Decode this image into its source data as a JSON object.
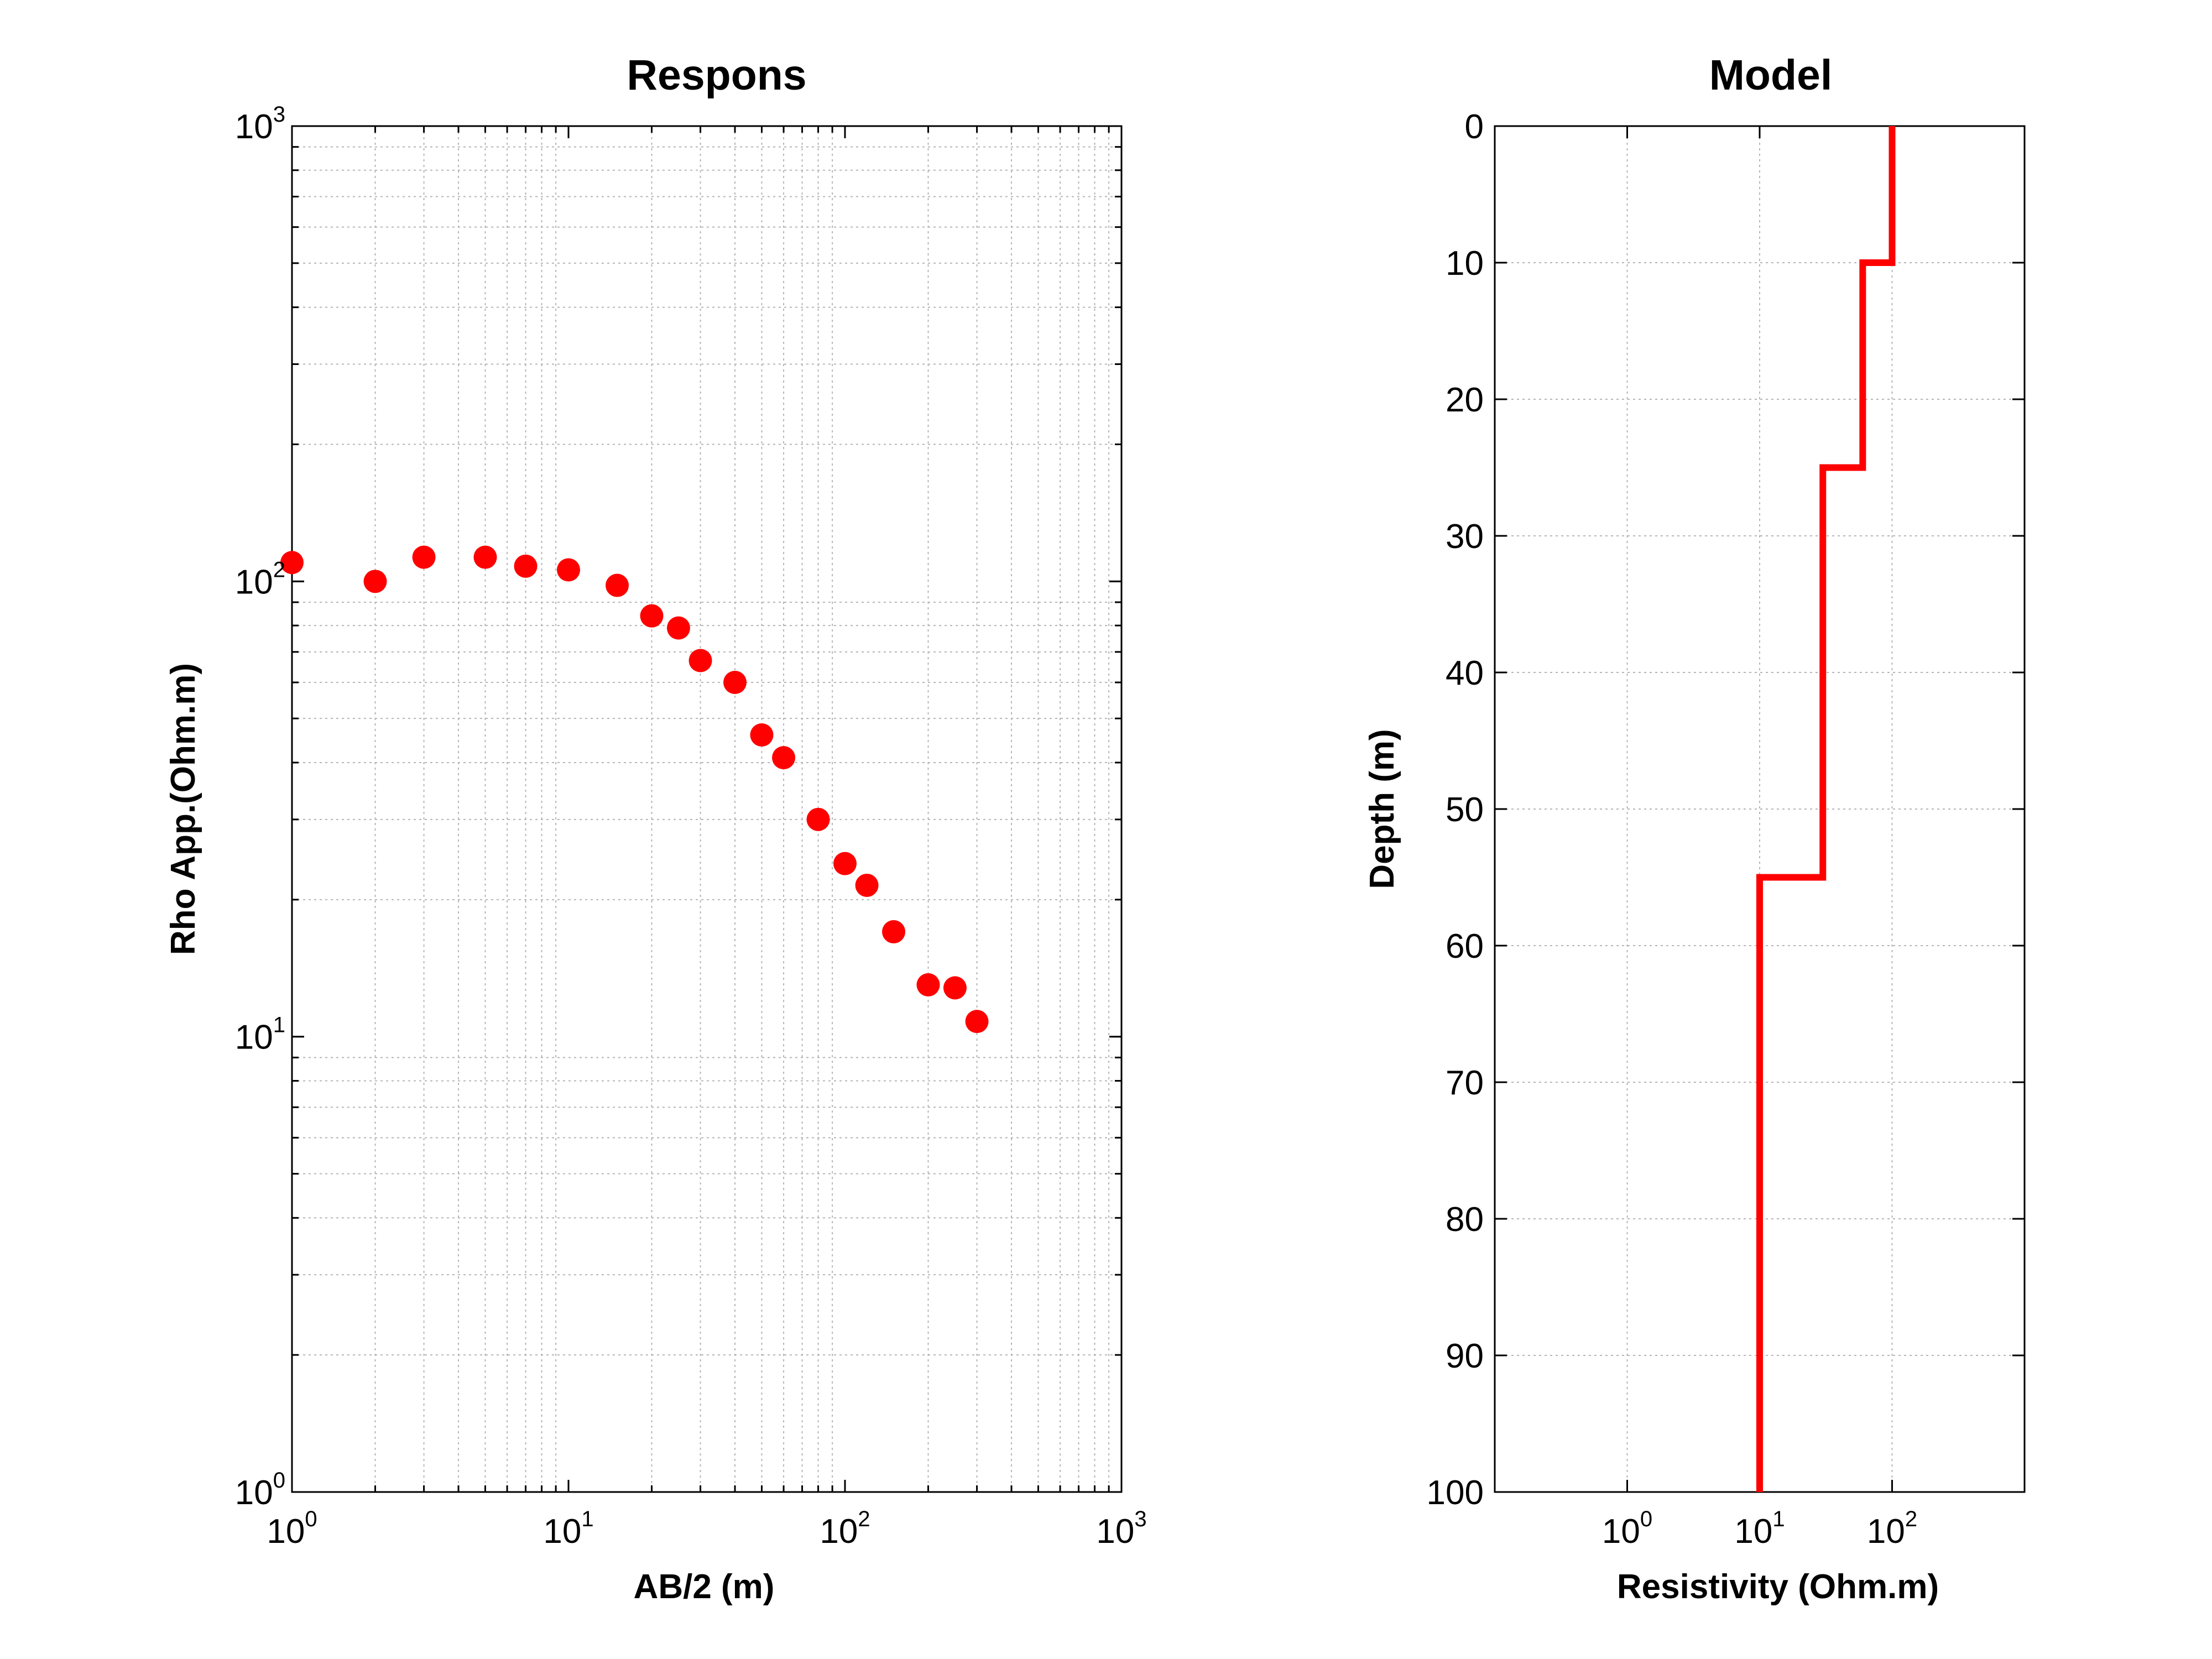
{
  "colors": {
    "marker": "#ff0000",
    "line": "#ff0000",
    "grid": "#b5b5b5"
  },
  "chart_data": [
    {
      "type": "scatter",
      "title": "Respons",
      "xlabel": "AB/2 (m)",
      "ylabel": "Rho App.(Ohm.m)",
      "xscale": "log",
      "yscale": "log",
      "xlim": [
        1,
        1000
      ],
      "ylim": [
        1,
        1000
      ],
      "grid": true,
      "x_ticks": [
        {
          "base": "10",
          "exp": "0",
          "value": 1
        },
        {
          "base": "10",
          "exp": "1",
          "value": 10
        },
        {
          "base": "10",
          "exp": "2",
          "value": 100
        },
        {
          "base": "10",
          "exp": "3",
          "value": 1000
        }
      ],
      "y_ticks": [
        {
          "base": "10",
          "exp": "0",
          "value": 1
        },
        {
          "base": "10",
          "exp": "1",
          "value": 10
        },
        {
          "base": "10",
          "exp": "2",
          "value": 100
        },
        {
          "base": "10",
          "exp": "3",
          "value": 1000
        }
      ],
      "x": [
        1,
        2,
        3,
        5,
        7,
        10,
        15,
        20,
        25,
        30,
        40,
        50,
        60,
        80,
        100,
        120,
        150,
        200,
        250,
        300
      ],
      "y": [
        110,
        100,
        113,
        113,
        108,
        106,
        98,
        84,
        79,
        67,
        60,
        46,
        41,
        30,
        24,
        21.5,
        17,
        13,
        12.8,
        10.8
      ]
    },
    {
      "type": "line",
      "title": "Model",
      "xlabel": "Resistivity (Ohm.m)",
      "ylabel": "Depth (m)",
      "xscale": "log",
      "xlim": [
        0.1,
        1000
      ],
      "ylim": [
        100,
        0
      ],
      "grid": true,
      "x_ticks": [
        {
          "base": "10",
          "exp": "0",
          "value": 1
        },
        {
          "base": "10",
          "exp": "1",
          "value": 10
        },
        {
          "base": "10",
          "exp": "2",
          "value": 100
        }
      ],
      "y_ticks": [
        0,
        10,
        20,
        30,
        40,
        50,
        60,
        70,
        80,
        90,
        100
      ],
      "resistivity": [
        100,
        60,
        30,
        10
      ],
      "depth_boundaries": [
        0,
        10,
        25,
        55,
        100
      ]
    }
  ]
}
